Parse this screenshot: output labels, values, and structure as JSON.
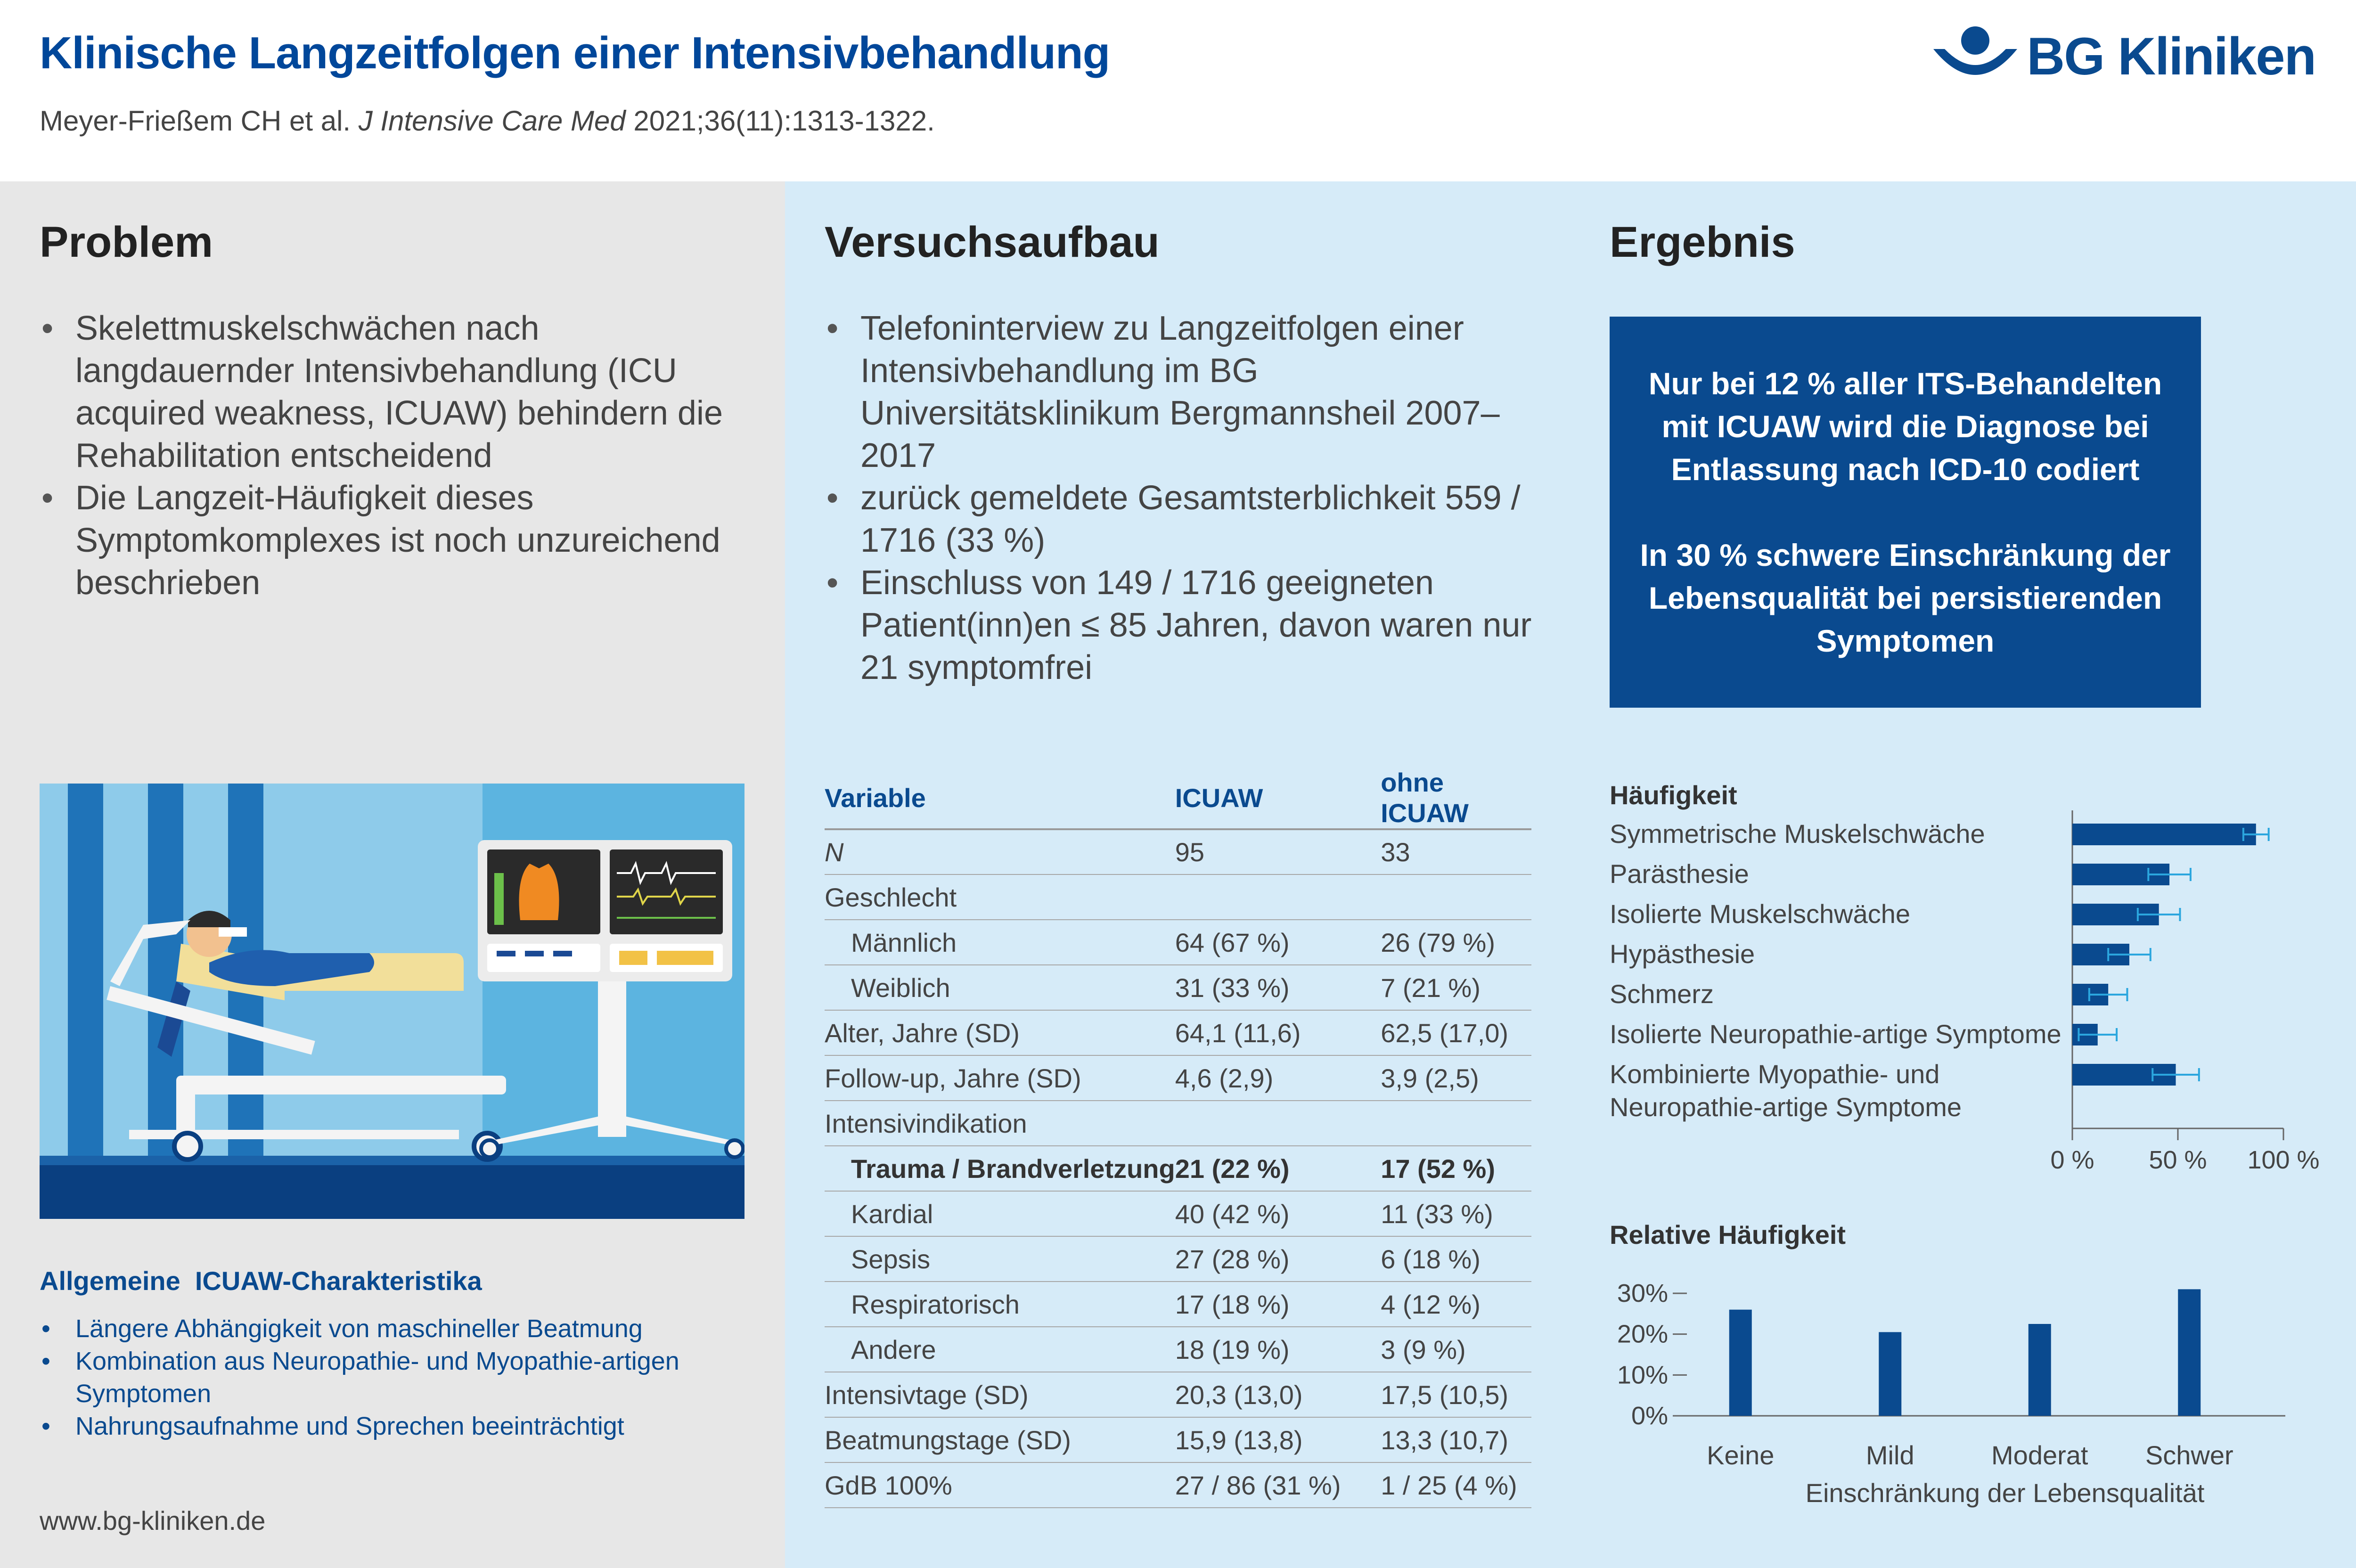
{
  "header": {
    "title": "Klinische Langzeitfolgen einer Intensivbehandlung",
    "citation_authors": "Meyer-Frießem CH et al. ",
    "citation_journal": "J Intensive Care Med",
    "citation_ref": " 2021;36(11):1313-1322.",
    "logo_text": "BG Kliniken"
  },
  "problem": {
    "heading": "Problem",
    "bullets": [
      "Skelettmuskelschwächen nach langdauernder Intensivbehandlung (ICU acquired weakness, ICUAW) behindern die Rehabilitation entscheidend",
      "Die Langzeit-Häufigkeit dieses Symptomkomplexes ist noch unzureichend beschrieben"
    ]
  },
  "versuchsaufbau": {
    "heading": "Versuchsaufbau",
    "bullets": [
      "Telefoninterview zu Langzeitfolgen einer Intensivbehandlung im BG Universitätsklinikum Bergmannsheil 2007–2017",
      "zurück gemeldete Gesamtsterblichkeit 559 / 1716 (33 %)",
      "Einschluss von 149 / 1716 geeigneten Patient(inn)en ≤ 85 Jahren, davon waren nur 21 symptomfrei"
    ]
  },
  "ergebnis": {
    "heading": "Ergebnis",
    "box_text_1": "Nur bei 12 % aller ITS-Behandelten mit ICUAW wird die Diagnose bei Entlassung nach ICD-10 codiert",
    "box_text_2": "In 30 % schwere Einschränkung der Lebensqualität bei persistierenden Symptomen"
  },
  "characteristics": {
    "heading": "Allgemeine  ICUAW-Charakteristika",
    "bullets": [
      "Längere Abhängigkeit von maschineller Beatmung",
      "Kombination aus Neuropathie- und Myopathie-artigen Symptomen",
      "Nahrungsaufnahme und Sprechen beeinträchtigt"
    ]
  },
  "footer": {
    "url": "www.bg-kliniken.de"
  },
  "table": {
    "headers": [
      "Variable",
      "ICUAW",
      "ohne ICUAW"
    ],
    "rows": [
      {
        "label": "N",
        "a": "95",
        "b": "33"
      },
      {
        "label": "Geschlecht",
        "a": "",
        "b": ""
      },
      {
        "label": "Männlich",
        "a": "64 (67 %)",
        "b": "26 (79 %)"
      },
      {
        "label": "Weiblich",
        "a": "31 (33 %)",
        "b": "7 (21 %)"
      },
      {
        "label": "Alter, Jahre (SD)",
        "a": "64,1 (11,6)",
        "b": "62,5 (17,0)"
      },
      {
        "label": "Follow-up, Jahre (SD)",
        "a": "4,6 (2,9)",
        "b": "3,9 (2,5)"
      },
      {
        "label": "Intensivindikation",
        "a": "",
        "b": ""
      },
      {
        "label": "Trauma / Brandverletzung",
        "a": "21 (22 %)",
        "b": "17 (52 %)"
      },
      {
        "label": "Kardial",
        "a": "40 (42 %)",
        "b": "11 (33 %)"
      },
      {
        "label": "Sepsis",
        "a": "27 (28 %)",
        "b": "6 (18 %)"
      },
      {
        "label": "Respiratorisch",
        "a": "17 (18 %)",
        "b": "4 (12 %)"
      },
      {
        "label": "Andere",
        "a": "18 (19 %)",
        "b": "3 (9 %)"
      },
      {
        "label": "Intensivtage (SD)",
        "a": "20,3 (13,0)",
        "b": "17,5 (10,5)"
      },
      {
        "label": "Beatmungstage (SD)",
        "a": "15,9 (13,8)",
        "b": "13,3 (10,7)"
      },
      {
        "label": "GdB 100%",
        "a": "27 / 86 (31 %)",
        "b": "1 / 25 (4 %)"
      }
    ]
  },
  "colors": {
    "brand": "#0a4a8f",
    "title_blue": "#00479a",
    "left_panel": "#e7e7e7",
    "right_panel": "#d6ebf8",
    "errorbar": "#2ba6de"
  },
  "illustration": {
    "icon": "icu-patient-illustration"
  },
  "chart_data": [
    {
      "type": "bar",
      "orientation": "horizontal",
      "title": "Häufigkeit",
      "categories": [
        "Symmetrische Muskelschwäche",
        "Parästhesie",
        "Isolierte Muskelschwäche",
        "Hypästhesie",
        "Schmerz",
        "Isolierte Neuropathie-artige Symptome",
        "Kombinierte Myopathie- und Neuropathie-artige Symptome"
      ],
      "values": [
        87,
        46,
        41,
        27,
        17,
        12,
        49
      ],
      "error": [
        6,
        10,
        10,
        10,
        9,
        9,
        11
      ],
      "xlim": [
        0,
        100
      ],
      "ticks": [
        "0 %",
        "50 %",
        "100 %"
      ],
      "grid": false
    },
    {
      "type": "bar",
      "title": "Relative Häufigkeit",
      "xlabel": "Einschränkung der Lebensqualität",
      "categories": [
        "Keine",
        "Mild",
        "Moderat",
        "Schwer"
      ],
      "values": [
        26,
        20.5,
        22.5,
        31
      ],
      "ylim": [
        0,
        30
      ],
      "ticks": [
        "0%",
        "10%",
        "20%",
        "30%"
      ],
      "grid": false
    }
  ]
}
